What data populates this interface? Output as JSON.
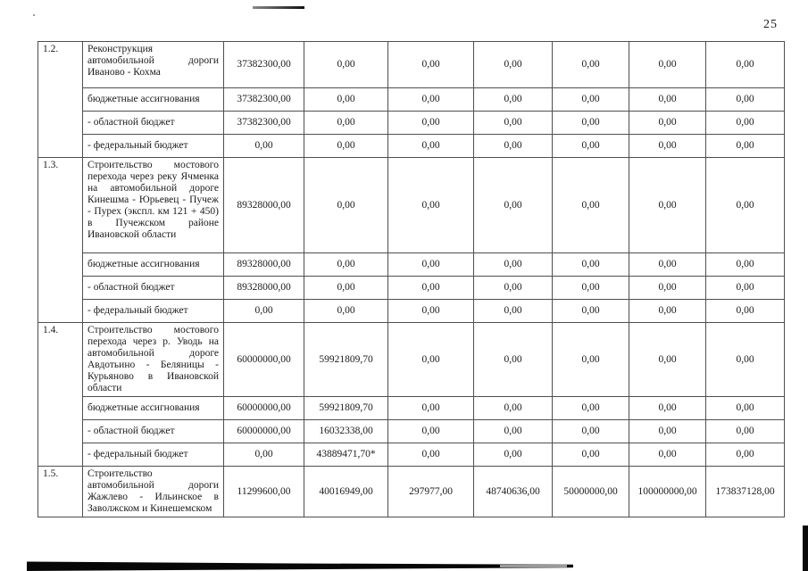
{
  "page": {
    "number": "25"
  },
  "table": {
    "sections": [
      {
        "num": "1.2.",
        "title": "Реконструкция автомобильной дороги Иваново - Кохма",
        "values": [
          "37382300,00",
          "0,00",
          "0,00",
          "0,00",
          "0,00",
          "0,00",
          "0,00"
        ],
        "subrows": [
          {
            "label": "бюджетные ассигнования",
            "values": [
              "37382300,00",
              "0,00",
              "0,00",
              "0,00",
              "0,00",
              "0,00",
              "0,00"
            ]
          },
          {
            "label": "- областной бюджет",
            "values": [
              "37382300,00",
              "0,00",
              "0,00",
              "0,00",
              "0,00",
              "0,00",
              "0,00"
            ]
          },
          {
            "label": "- федеральный бюджет",
            "values": [
              "0,00",
              "0,00",
              "0,00",
              "0,00",
              "0,00",
              "0,00",
              "0,00"
            ]
          }
        ]
      },
      {
        "num": "1.3.",
        "title": "Строительство мостового перехода через реку Ячменка на автомобильной дороге Кинешма - Юрьевец - Пучеж - Пурех (экспл. км 121 + 450) в Пучежском районе Ивановской области",
        "values": [
          "89328000,00",
          "0,00",
          "0,00",
          "0,00",
          "0,00",
          "0,00",
          "0,00"
        ],
        "subrows": [
          {
            "label": "бюджетные ассигнования",
            "values": [
              "89328000,00",
              "0,00",
              "0,00",
              "0,00",
              "0,00",
              "0,00",
              "0,00"
            ]
          },
          {
            "label": "- областной бюджет",
            "values": [
              "89328000,00",
              "0,00",
              "0,00",
              "0,00",
              "0,00",
              "0,00",
              "0,00"
            ]
          },
          {
            "label": "- федеральный бюджет",
            "values": [
              "0,00",
              "0,00",
              "0,00",
              "0,00",
              "0,00",
              "0,00",
              "0,00"
            ]
          }
        ]
      },
      {
        "num": "1.4.",
        "title": "Строительство мостового перехода через р. Уводь на автомобильной дороге Авдотьино - Беляницы - Курьяново в Ивановской области",
        "values": [
          "60000000,00",
          "59921809,70",
          "0,00",
          "0,00",
          "0,00",
          "0,00",
          "0,00"
        ],
        "subrows": [
          {
            "label": "бюджетные ассигнования",
            "values": [
              "60000000,00",
              "59921809,70",
              "0,00",
              "0,00",
              "0,00",
              "0,00",
              "0,00"
            ]
          },
          {
            "label": "- областной бюджет",
            "values": [
              "60000000,00",
              "16032338,00",
              "0,00",
              "0,00",
              "0,00",
              "0,00",
              "0,00"
            ]
          },
          {
            "label": "- федеральный бюджет",
            "values": [
              "0,00",
              "43889471,70*",
              "0,00",
              "0,00",
              "0,00",
              "0,00",
              "0,00"
            ]
          }
        ]
      },
      {
        "num": "1.5.",
        "title": "Строительство автомобильной дороги Жажлево - Ильинское в Заволжском и Кинешемском",
        "values": [
          "11299600,00",
          "40016949,00",
          "297977,00",
          "48740636,00",
          "50000000,00",
          "100000000,00",
          "173837128,00"
        ],
        "subrows": []
      }
    ]
  }
}
